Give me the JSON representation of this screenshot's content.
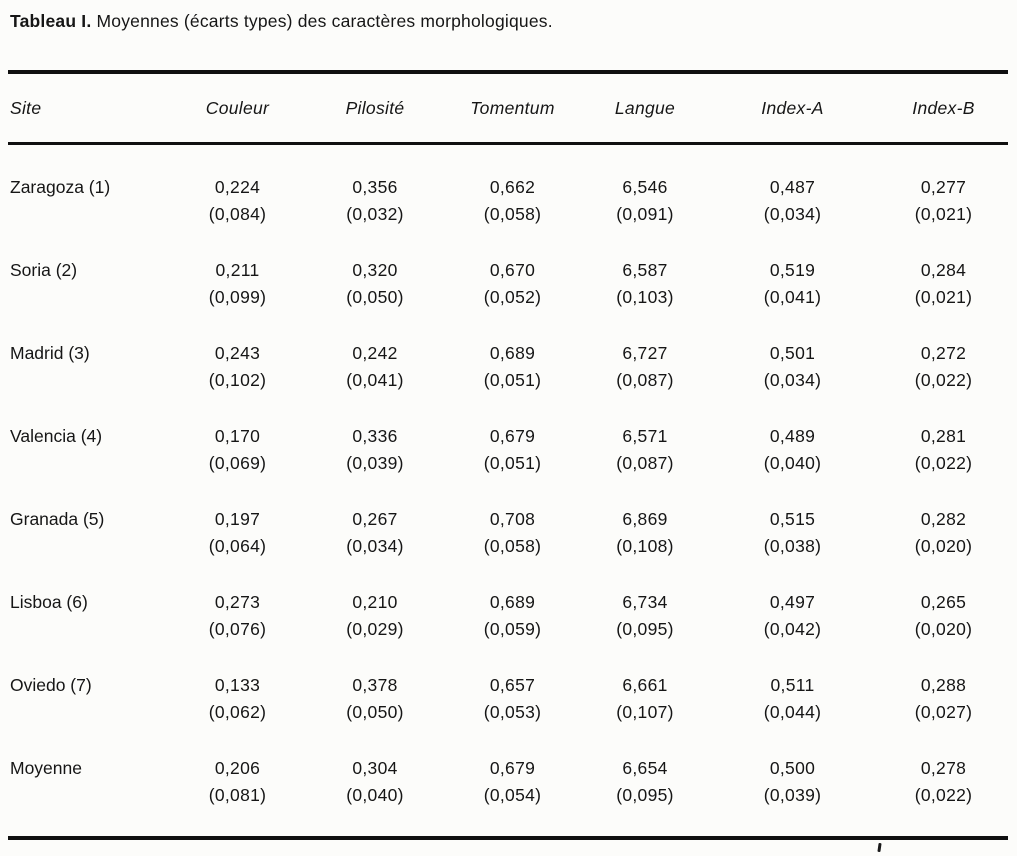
{
  "page": {
    "title_bold": "Tableau I.",
    "title_rest": " Moyennes (écarts types) des caractères morphologiques."
  },
  "table": {
    "columns": [
      "Site",
      "Couleur",
      "Pilosité",
      "Tomentum",
      "Langue",
      "Index-A",
      "Index-B"
    ],
    "rows": [
      {
        "site": "Zaragoza (1)",
        "values": [
          "0,224",
          "0,356",
          "0,662",
          "6,546",
          "0,487",
          "0,277"
        ],
        "sd": [
          "(0,084)",
          "(0,032)",
          "(0,058)",
          "(0,091)",
          "(0,034)",
          "(0,021)"
        ]
      },
      {
        "site": "Soria (2)",
        "values": [
          "0,211",
          "0,320",
          "0,670",
          "6,587",
          "0,519",
          "0,284"
        ],
        "sd": [
          "(0,099)",
          "(0,050)",
          "(0,052)",
          "(0,103)",
          "(0,041)",
          "(0,021)"
        ]
      },
      {
        "site": "Madrid (3)",
        "values": [
          "0,243",
          "0,242",
          "0,689",
          "6,727",
          "0,501",
          "0,272"
        ],
        "sd": [
          "(0,102)",
          "(0,041)",
          "(0,051)",
          "(0,087)",
          "(0,034)",
          "(0,022)"
        ]
      },
      {
        "site": "Valencia (4)",
        "values": [
          "0,170",
          "0,336",
          "0,679",
          "6,571",
          "0,489",
          "0,281"
        ],
        "sd": [
          "(0,069)",
          "(0,039)",
          "(0,051)",
          "(0,087)",
          "(0,040)",
          "(0,022)"
        ]
      },
      {
        "site": "Granada (5)",
        "values": [
          "0,197",
          "0,267",
          "0,708",
          "6,869",
          "0,515",
          "0,282"
        ],
        "sd": [
          "(0,064)",
          "(0,034)",
          "(0,058)",
          "(0,108)",
          "(0,038)",
          "(0,020)"
        ]
      },
      {
        "site": "Lisboa (6)",
        "values": [
          "0,273",
          "0,210",
          "0,689",
          "6,734",
          "0,497",
          "0,265"
        ],
        "sd": [
          "(0,076)",
          "(0,029)",
          "(0,059)",
          "(0,095)",
          "(0,042)",
          "(0,020)"
        ]
      },
      {
        "site": "Oviedo (7)",
        "values": [
          "0,133",
          "0,378",
          "0,657",
          "6,661",
          "0,511",
          "0,288"
        ],
        "sd": [
          "(0,062)",
          "(0,050)",
          "(0,053)",
          "(0,107)",
          "(0,044)",
          "(0,027)"
        ]
      },
      {
        "site": "Moyenne",
        "values": [
          "0,206",
          "0,304",
          "0,679",
          "6,654",
          "0,500",
          "0,278"
        ],
        "sd": [
          "(0,081)",
          "(0,040)",
          "(0,054)",
          "(0,095)",
          "(0,039)",
          "(0,022)"
        ]
      }
    ]
  }
}
